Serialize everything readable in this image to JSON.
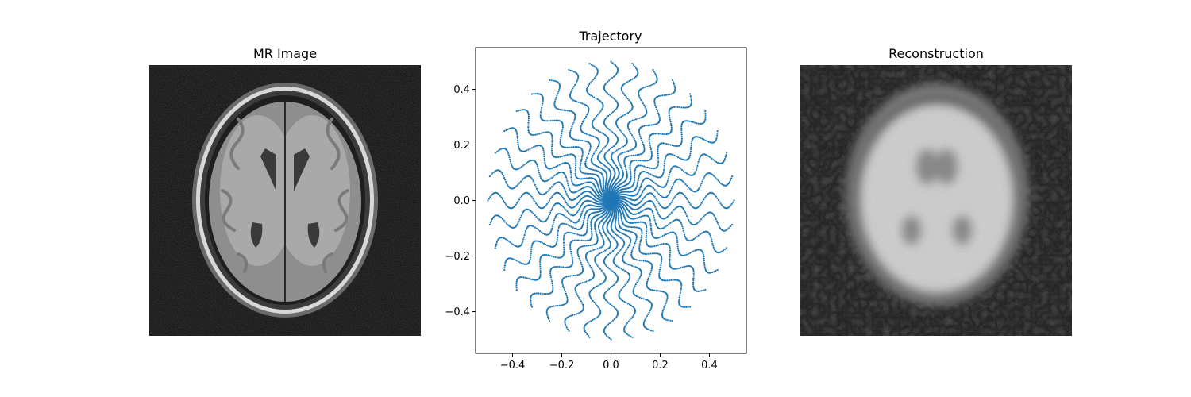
{
  "figure": {
    "panels": [
      {
        "title": "MR Image"
      },
      {
        "title": "Trajectory"
      },
      {
        "title": "Reconstruction"
      }
    ]
  },
  "colors": {
    "trajectory": "#1f77b4",
    "background": "#ffffff",
    "axes": "#000000"
  },
  "chart_data": [
    {
      "type": "image",
      "title": "MR Image",
      "content": "axial brain MR slice, grayscale",
      "axes_visible": false
    },
    {
      "type": "scatter",
      "title": "Trajectory",
      "xlim": [
        -0.55,
        0.55
      ],
      "ylim": [
        -0.55,
        0.55
      ],
      "xticks": [
        -0.4,
        -0.2,
        0.0,
        0.2,
        0.4
      ],
      "yticks": [
        -0.4,
        -0.2,
        0.0,
        0.2,
        0.4
      ],
      "xtick_labels": [
        "−0.4",
        "−0.2",
        "0.0",
        "0.2",
        "0.4"
      ],
      "ytick_labels": [
        "−0.4",
        "−0.2",
        "0.0",
        "0.2",
        "0.4"
      ],
      "marker_color": "#1f77b4",
      "trajectory": {
        "kind": "wavy radial spokes",
        "n_spokes": 36,
        "max_radius": 0.5,
        "oscillations_per_spoke": 4,
        "oscillation_amplitude": 0.028
      },
      "grid": false
    },
    {
      "type": "image",
      "title": "Reconstruction",
      "content": "blurred reconstruction of axial brain slice with streak artifacts, grayscale",
      "axes_visible": false
    }
  ]
}
